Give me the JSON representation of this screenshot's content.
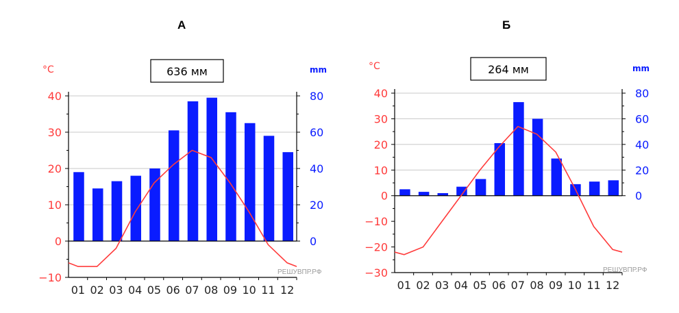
{
  "panels": [
    {
      "label": "А"
    },
    {
      "label": "Б"
    }
  ],
  "watermark": "РЕШУВПР.РФ",
  "colors": {
    "temp": "#ff3b3b",
    "precip": "#0a1cff",
    "grid": "#c8c8c8",
    "axis": "#000000"
  },
  "chart_data": [
    {
      "type": "bar",
      "title": "А",
      "annotation": "636 мм",
      "ylabel_left": "°C",
      "ylabel_right": "mm",
      "categories": [
        "01",
        "02",
        "03",
        "04",
        "05",
        "06",
        "07",
        "08",
        "09",
        "10",
        "11",
        "12"
      ],
      "ylim_left": [
        -10,
        40
      ],
      "ylim_right": [
        0,
        80
      ],
      "yticks_left": [
        -10,
        0,
        10,
        20,
        30,
        40
      ],
      "yticks_right": [
        0,
        20,
        40,
        60,
        80
      ],
      "grid": true,
      "series": [
        {
          "kind": "bar",
          "axis": "right",
          "values": [
            38,
            29,
            33,
            36,
            40,
            61,
            77,
            79,
            71,
            65,
            58,
            49
          ]
        },
        {
          "kind": "line",
          "axis": "left",
          "values": [
            -7,
            -7,
            -2,
            8,
            16,
            21,
            25,
            23,
            16,
            8,
            -1,
            -6
          ]
        }
      ]
    },
    {
      "type": "bar",
      "title": "Б",
      "annotation": "264 мм",
      "ylabel_left": "°C",
      "ylabel_right": "mm",
      "categories": [
        "01",
        "02",
        "03",
        "04",
        "05",
        "06",
        "07",
        "08",
        "09",
        "10",
        "11",
        "12"
      ],
      "ylim_left": [
        -30,
        40
      ],
      "ylim_right": [
        0,
        80
      ],
      "yticks_left": [
        -30,
        -20,
        -10,
        0,
        10,
        20,
        30,
        40
      ],
      "yticks_right": [
        0,
        20,
        40,
        60,
        80
      ],
      "grid": true,
      "series": [
        {
          "kind": "bar",
          "axis": "right",
          "values": [
            5,
            3,
            2,
            7,
            13,
            41,
            73,
            60,
            29,
            9,
            11,
            12
          ]
        },
        {
          "kind": "line",
          "axis": "left",
          "values": [
            -23,
            -20,
            -10,
            0,
            10,
            19,
            27,
            24,
            17,
            3,
            -12,
            -21
          ]
        }
      ]
    }
  ]
}
